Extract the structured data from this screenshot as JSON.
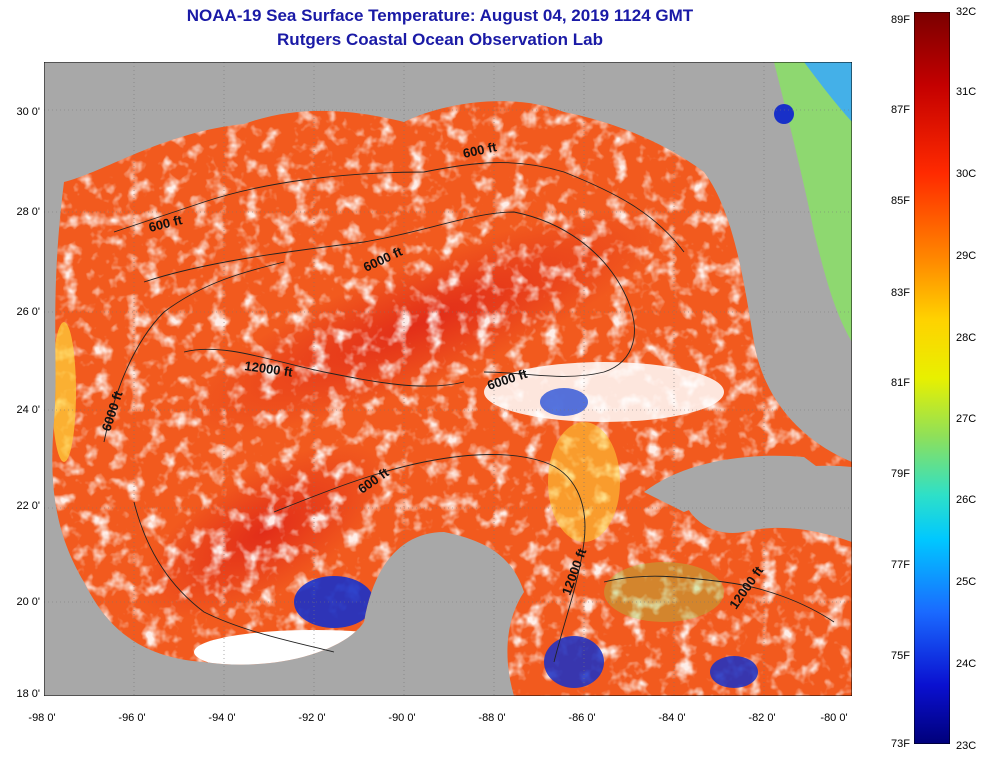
{
  "title": {
    "line1": "NOAA-19 Sea Surface Temperature:  August 04, 2019 1124 GMT",
    "line2": "Rutgers Coastal Ocean Observation Lab"
  },
  "axes": {
    "lat_labels": [
      "30 0'",
      "28 0'",
      "26 0'",
      "24 0'",
      "22 0'",
      "20 0'",
      "18 0'"
    ],
    "lon_labels": [
      "-98 0'",
      "-96 0'",
      "-94 0'",
      "-92 0'",
      "-90 0'",
      "-88 0'",
      "-86 0'",
      "-84 0'",
      "-82 0'",
      "-80 0'"
    ]
  },
  "contour_labels": [
    "600 ft",
    "600 ft",
    "6000 ft",
    "12000 ft",
    "6000 ft",
    "6000 ft",
    "600 ft",
    "12000 ft",
    "12000 ft"
  ],
  "colorbar": {
    "fahrenheit": [
      "89F",
      "87F",
      "85F",
      "83F",
      "81F",
      "79F",
      "77F",
      "75F",
      "73F"
    ],
    "celsius": [
      "32C",
      "31C",
      "30C",
      "29C",
      "28C",
      "27C",
      "26C",
      "25C",
      "24C",
      "23C"
    ]
  },
  "colors": {
    "land": "#a8a8a8",
    "cloud": "#ffffff",
    "title": "#1a1aa6",
    "warm": "#f25a1e",
    "hot": "#e8301a",
    "cool": "#1830c8"
  }
}
